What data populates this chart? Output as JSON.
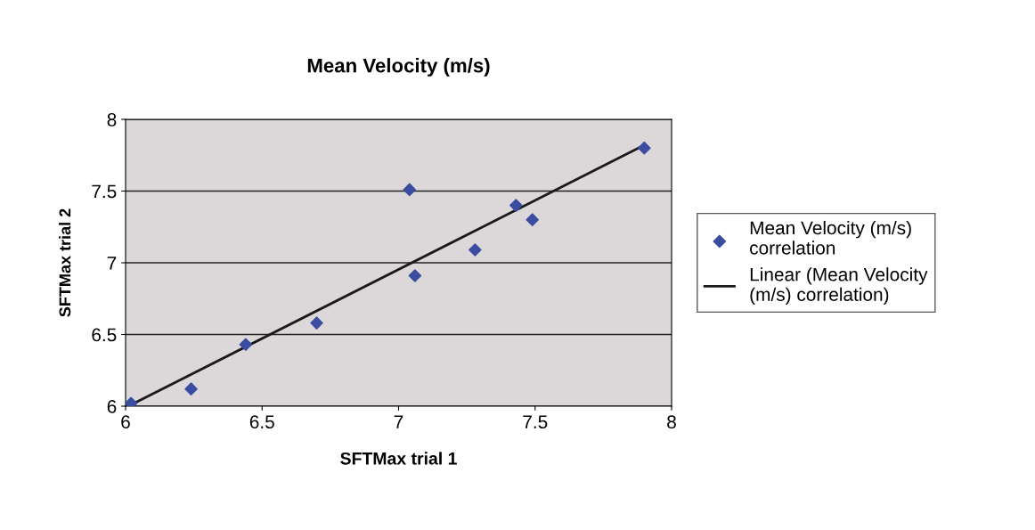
{
  "chart_data": {
    "type": "scatter",
    "title": "Mean Velocity (m/s)",
    "xlabel": "SFTMax trial 1",
    "ylabel": "SFTMax trial 2",
    "xlim": [
      6,
      8
    ],
    "xticks": [
      6,
      6.5,
      7,
      7.5,
      8
    ],
    "ylim": [
      6,
      8
    ],
    "yticks": [
      6,
      6.5,
      7,
      7.5,
      8
    ],
    "grid": "y",
    "legend": "right",
    "series": [
      {
        "name": "Mean Velocity (m/s) correlation",
        "marker": "diamond",
        "color": "#3a4da0",
        "x": [
          6.02,
          6.24,
          6.44,
          6.7,
          7.04,
          7.06,
          7.28,
          7.43,
          7.49,
          7.9
        ],
        "values": [
          6.02,
          6.12,
          6.43,
          6.58,
          7.51,
          6.91,
          7.09,
          7.4,
          7.3,
          7.8
        ]
      },
      {
        "name": "Linear (Mean Velocity (m/s) correlation)",
        "type": "line",
        "color": "#1a1a1a",
        "x": [
          6.01,
          7.9
        ],
        "values": [
          6.0,
          7.82
        ]
      }
    ]
  }
}
